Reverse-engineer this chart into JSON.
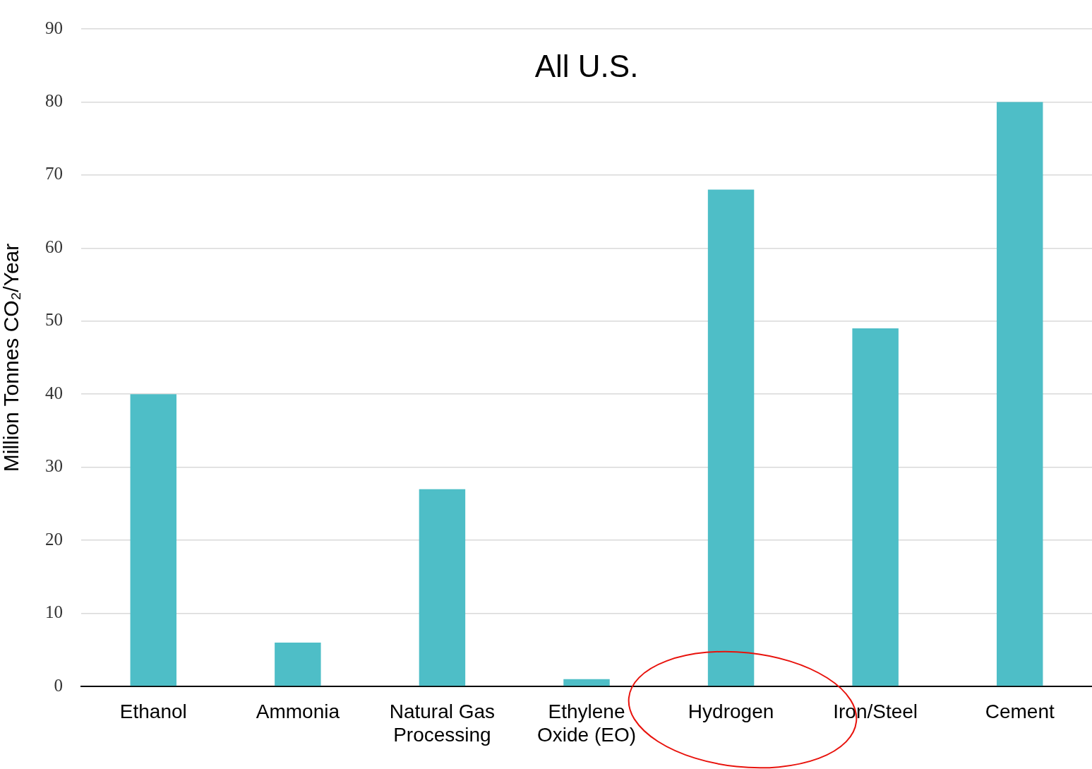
{
  "chart_data": {
    "type": "bar",
    "title": "All U.S.",
    "ylabel": "Million Tonnes CO₂/Year",
    "categories": [
      "Ethanol",
      "Ammonia",
      "Natural Gas Processing",
      "Ethylene Oxide (EO)",
      "Hydrogen",
      "Iron/Steel",
      "Cement"
    ],
    "values": [
      40,
      6,
      27,
      1,
      68,
      49,
      80
    ],
    "color": "#4ebec7",
    "ylim": [
      0,
      90
    ],
    "yticks": [
      0,
      10,
      20,
      30,
      40,
      50,
      60,
      70,
      80,
      90
    ],
    "grid": "y",
    "legend": false
  }
}
